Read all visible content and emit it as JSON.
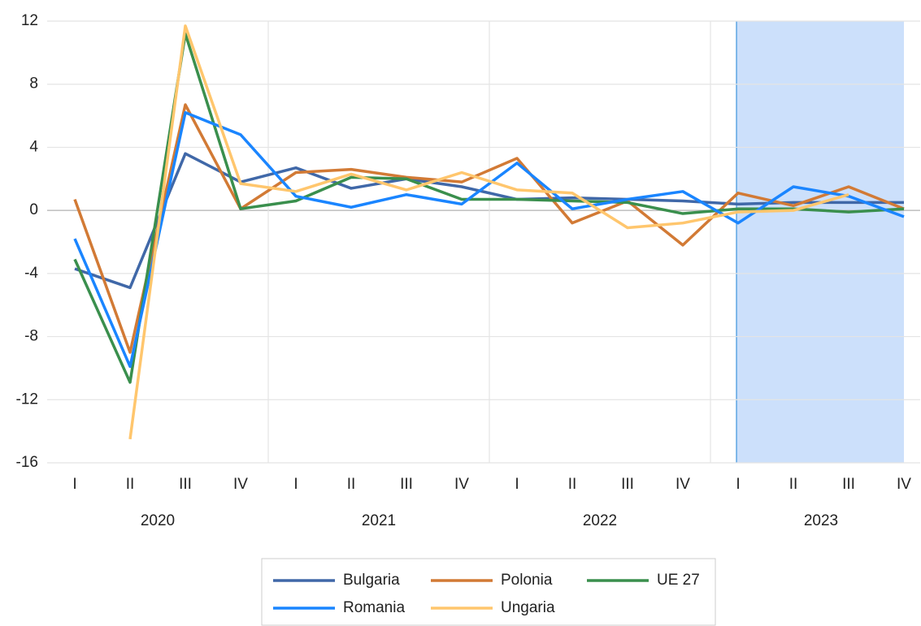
{
  "chart_data": {
    "type": "line",
    "categories": [
      "I",
      "II",
      "III",
      "IV",
      "I",
      "II",
      "III",
      "IV",
      "I",
      "II",
      "III",
      "IV",
      "I",
      "II",
      "III",
      "IV"
    ],
    "year_groups": [
      "2020",
      "2021",
      "2022",
      "2023"
    ],
    "highlight": {
      "start": 12,
      "end": 15,
      "color": "#cce0fb"
    },
    "ylim": [
      -16,
      12
    ],
    "yticks": [
      -16,
      -12,
      -8,
      -4,
      0,
      4,
      8,
      12
    ],
    "grid": true,
    "series": [
      {
        "name": "Bulgaria",
        "color": "#4068a8",
        "values": [
          -3.7,
          -4.9,
          3.6,
          1.8,
          2.7,
          1.4,
          2.0,
          1.5,
          0.7,
          0.8,
          0.7,
          0.6,
          0.4,
          0.5,
          0.5,
          0.5
        ]
      },
      {
        "name": "Polonia",
        "color": "#d27a35",
        "values": [
          0.7,
          -9.0,
          6.7,
          0.1,
          2.4,
          2.6,
          2.1,
          1.8,
          3.3,
          -0.8,
          0.6,
          -2.2,
          1.1,
          0.3,
          1.5,
          0.1
        ]
      },
      {
        "name": "UE 27",
        "color": "#3a8f4d",
        "values": [
          -3.1,
          -10.9,
          11.2,
          0.1,
          0.6,
          2.1,
          2.0,
          0.7,
          0.7,
          0.6,
          0.5,
          -0.2,
          0.1,
          0.1,
          -0.1,
          0.1
        ]
      },
      {
        "name": "Romania",
        "color": "#1a85ff",
        "values": [
          -1.8,
          -9.9,
          6.2,
          4.8,
          0.9,
          0.2,
          1.0,
          0.4,
          3.0,
          0.1,
          0.7,
          1.2,
          -0.8,
          1.5,
          0.9,
          -0.4
        ]
      },
      {
        "name": "Ungaria",
        "color": "#ffc66d",
        "values": [
          null,
          -14.5,
          11.7,
          1.7,
          1.2,
          2.3,
          1.3,
          2.4,
          1.3,
          1.1,
          -1.1,
          -0.8,
          -0.1,
          0.0,
          1.0,
          null
        ]
      }
    ]
  }
}
